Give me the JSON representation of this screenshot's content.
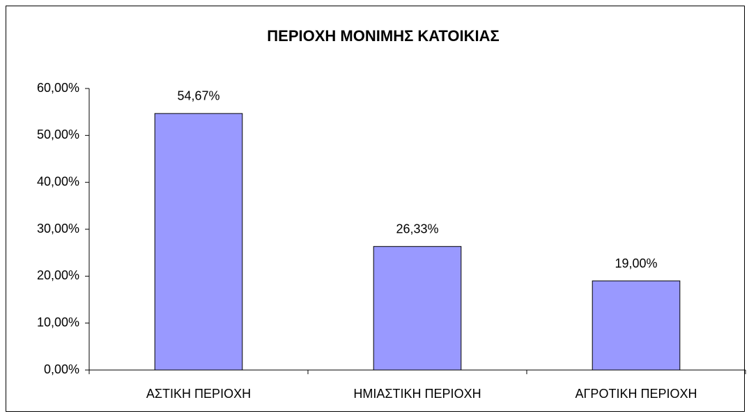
{
  "chart_data": {
    "type": "bar",
    "title": "ΠΕΡΙΟΧΗ ΜΟΝΙΜΗΣ ΚΑΤΟΙΚΙΑΣ",
    "categories": [
      "ΑΣΤΙΚΗ ΠΕΡΙΟΧΗ",
      "ΗΜΙΑΣΤΙΚΗ ΠΕΡΙΟΧΗ",
      "ΑΓΡΟΤΙΚΗ ΠΕΡΙΟΧΗ"
    ],
    "values": [
      54.67,
      26.33,
      19.0
    ],
    "value_labels": [
      "54,67%",
      "26,33%",
      "19,00%"
    ],
    "color": "#9999ff",
    "ylim": [
      0,
      60
    ],
    "yticks": [
      {
        "value": 0,
        "label": "0,00%"
      },
      {
        "value": 10,
        "label": "10,00%"
      },
      {
        "value": 20,
        "label": "20,00%"
      },
      {
        "value": 30,
        "label": "30,00%"
      },
      {
        "value": 40,
        "label": "40,00%"
      },
      {
        "value": 50,
        "label": "50,00%"
      },
      {
        "value": 60,
        "label": "60,00%"
      }
    ],
    "grid": false
  }
}
